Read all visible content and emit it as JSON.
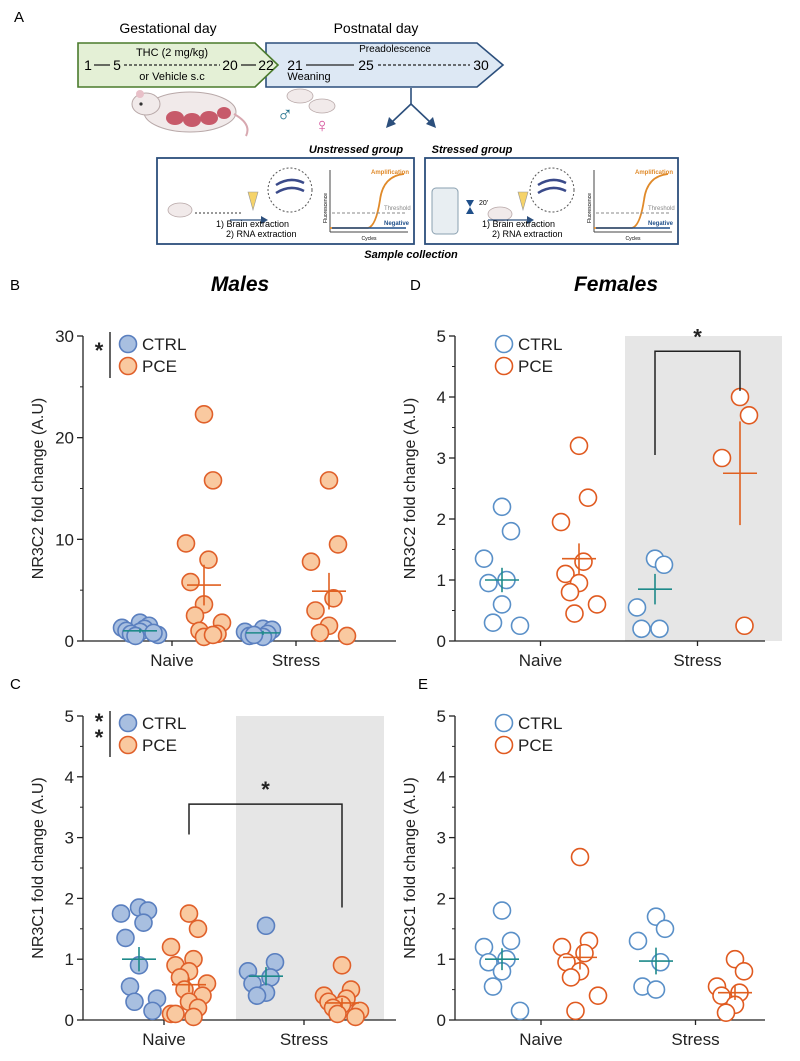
{
  "panel_letters": {
    "a": "A",
    "b": "B",
    "c": "C",
    "d": "D",
    "e": "E"
  },
  "section_titles": {
    "males": "Males",
    "females": "Females"
  },
  "colors": {
    "ctrl_fill_male": "#a8bfe0",
    "ctrl_stroke_male": "#5a7fbf",
    "pce_fill_male": "#f9c9a0",
    "pce_stroke_male": "#e0602a",
    "ctrl_stroke_female": "#5a90c8",
    "pce_stroke_female": "#e05a20",
    "ctrl_line": "#1e8a8a",
    "pce_line": "#e06020",
    "shade": "#e6e6e6"
  },
  "schematic": {
    "gestational_title": "Gestational day",
    "postnatal_title": "Postnatal day",
    "day_1": "1",
    "day_5": "5",
    "day_20": "20",
    "day_22": "22",
    "day_21": "21",
    "day_25": "25",
    "day_30": "30",
    "treatment_line1": "THC (2 mg/kg)",
    "treatment_line2": "or Vehicle s.c",
    "preadolescence": "Preadolescence",
    "weaning": "Weaning",
    "male_symbol": "♂",
    "female_symbol": "♀",
    "unstressed_group": "Unstressed group",
    "stressed_group": "Stressed group",
    "step1": "1) Brain extraction",
    "step2": "2) RNA extraction",
    "amplification": "Amplification",
    "threshold": "Threshold",
    "negative": "Negative",
    "fluorescence": "Fluorescence",
    "cycles": "Cycles",
    "timer": "20'",
    "sample_collection": "Sample collection"
  },
  "chart_data": [
    {
      "id": "B",
      "type": "scatter",
      "sex": "Males",
      "ylabel": "NR3C2 fold change (A.U)",
      "ylim": [
        0,
        30
      ],
      "yticks": [
        "0",
        "10",
        "20",
        "30"
      ],
      "categories": [
        "Naive",
        "Stress"
      ],
      "legend": [
        "CTRL",
        "PCE"
      ],
      "significance": "*",
      "shaded_category": null,
      "bracket": null,
      "series": [
        {
          "name": "CTRL",
          "group": "Naive",
          "mean": 1.0,
          "sem": 0.2,
          "values": [
            1.8,
            1.5,
            1.3,
            1.2,
            1.0,
            0.9,
            0.7,
            0.6,
            0.5,
            0.8
          ]
        },
        {
          "name": "PCE",
          "group": "Naive",
          "mean": 5.5,
          "sem": 2.0,
          "values": [
            22.3,
            15.8,
            9.6,
            8.0,
            5.8,
            3.6,
            2.5,
            1.8,
            1.0,
            0.7,
            0.4,
            0.6
          ]
        },
        {
          "name": "CTRL",
          "group": "Stress",
          "mean": 0.8,
          "sem": 0.2,
          "values": [
            1.2,
            1.1,
            0.9,
            0.7,
            0.5,
            0.4,
            0.6
          ]
        },
        {
          "name": "PCE",
          "group": "Stress",
          "mean": 4.9,
          "sem": 1.8,
          "values": [
            15.8,
            9.5,
            7.8,
            4.2,
            3.0,
            1.5,
            0.8,
            0.5
          ]
        }
      ]
    },
    {
      "id": "D",
      "type": "scatter",
      "sex": "Females",
      "ylabel": "NR3C2 fold change (A.U)",
      "ylim": [
        0,
        5
      ],
      "yticks": [
        "0",
        "1",
        "2",
        "3",
        "4",
        "5"
      ],
      "categories": [
        "Naive",
        "Stress"
      ],
      "legend": [
        "CTRL",
        "PCE"
      ],
      "significance": null,
      "shaded_category": "Stress",
      "bracket": {
        "label": "*",
        "from": "CTRL:Stress",
        "to": "PCE:Stress",
        "y": 4.75,
        "left_drop": 3.05,
        "right_drop": 4.1
      },
      "series": [
        {
          "name": "CTRL",
          "group": "Naive",
          "mean": 1.0,
          "sem": 0.2,
          "values": [
            2.2,
            1.8,
            1.35,
            1.0,
            0.95,
            0.6,
            0.3,
            0.25
          ]
        },
        {
          "name": "PCE",
          "group": "Naive",
          "mean": 1.35,
          "sem": 0.25,
          "values": [
            3.2,
            2.35,
            1.95,
            1.3,
            1.1,
            0.95,
            0.8,
            0.6,
            0.45
          ]
        },
        {
          "name": "CTRL",
          "group": "Stress",
          "mean": 0.85,
          "sem": 0.25,
          "values": [
            1.35,
            1.25,
            0.55,
            0.2,
            0.2
          ]
        },
        {
          "name": "PCE",
          "group": "Stress",
          "mean": 2.75,
          "sem": 0.85,
          "values": [
            4.0,
            3.7,
            3.0,
            0.25
          ]
        }
      ]
    },
    {
      "id": "C",
      "type": "scatter",
      "sex": "Males",
      "ylabel": "NR3C1 fold change (A.U)",
      "ylim": [
        0,
        5
      ],
      "yticks": [
        "0",
        "1",
        "2",
        "3",
        "4",
        "5"
      ],
      "categories": [
        "Naive",
        "Stress"
      ],
      "legend": [
        "CTRL",
        "PCE"
      ],
      "significance": "**",
      "shaded_category": "Stress",
      "bracket": {
        "label": "*",
        "from": "PCE:Naive",
        "to": "PCE:Stress",
        "y": 3.55,
        "left_drop": 3.05,
        "right_drop": 1.85
      },
      "series": [
        {
          "name": "CTRL",
          "group": "Naive",
          "mean": 1.0,
          "sem": 0.2,
          "values": [
            1.85,
            1.8,
            1.75,
            1.6,
            1.35,
            0.9,
            0.55,
            0.35,
            0.3,
            0.15
          ]
        },
        {
          "name": "PCE",
          "group": "Naive",
          "mean": 0.58,
          "sem": 0.12,
          "values": [
            1.75,
            1.5,
            1.2,
            1.0,
            0.9,
            0.8,
            0.7,
            0.6,
            0.5,
            0.4,
            0.3,
            0.2,
            0.1,
            0.05,
            0.1
          ]
        },
        {
          "name": "CTRL",
          "group": "Stress",
          "mean": 0.72,
          "sem": 0.15,
          "values": [
            1.55,
            0.95,
            0.8,
            0.7,
            0.6,
            0.45,
            0.4
          ]
        },
        {
          "name": "PCE",
          "group": "Stress",
          "mean": 0.28,
          "sem": 0.08,
          "values": [
            0.9,
            0.5,
            0.4,
            0.35,
            0.3,
            0.25,
            0.2,
            0.15,
            0.1,
            0.05
          ]
        }
      ]
    },
    {
      "id": "E",
      "type": "scatter",
      "sex": "Females",
      "ylabel": "NR3C1 fold change (A.U)",
      "ylim": [
        0,
        5
      ],
      "yticks": [
        "0",
        "1",
        "2",
        "3",
        "4",
        "5"
      ],
      "categories": [
        "Naive",
        "Stress"
      ],
      "legend": [
        "CTRL",
        "PCE"
      ],
      "significance": null,
      "shaded_category": null,
      "bracket": null,
      "series": [
        {
          "name": "CTRL",
          "group": "Naive",
          "mean": 1.0,
          "sem": 0.18,
          "values": [
            1.8,
            1.3,
            1.2,
            1.0,
            0.95,
            0.8,
            0.55,
            0.15
          ]
        },
        {
          "name": "PCE",
          "group": "Naive",
          "mean": 1.03,
          "sem": 0.2,
          "values": [
            2.68,
            1.3,
            1.2,
            1.1,
            0.95,
            0.8,
            0.7,
            0.4,
            0.15
          ]
        },
        {
          "name": "CTRL",
          "group": "Stress",
          "mean": 0.97,
          "sem": 0.22,
          "values": [
            1.7,
            1.5,
            1.3,
            0.95,
            0.55,
            0.5
          ]
        },
        {
          "name": "PCE",
          "group": "Stress",
          "mean": 0.45,
          "sem": 0.12,
          "values": [
            1.0,
            0.8,
            0.55,
            0.45,
            0.4,
            0.25,
            0.12
          ]
        }
      ]
    }
  ]
}
